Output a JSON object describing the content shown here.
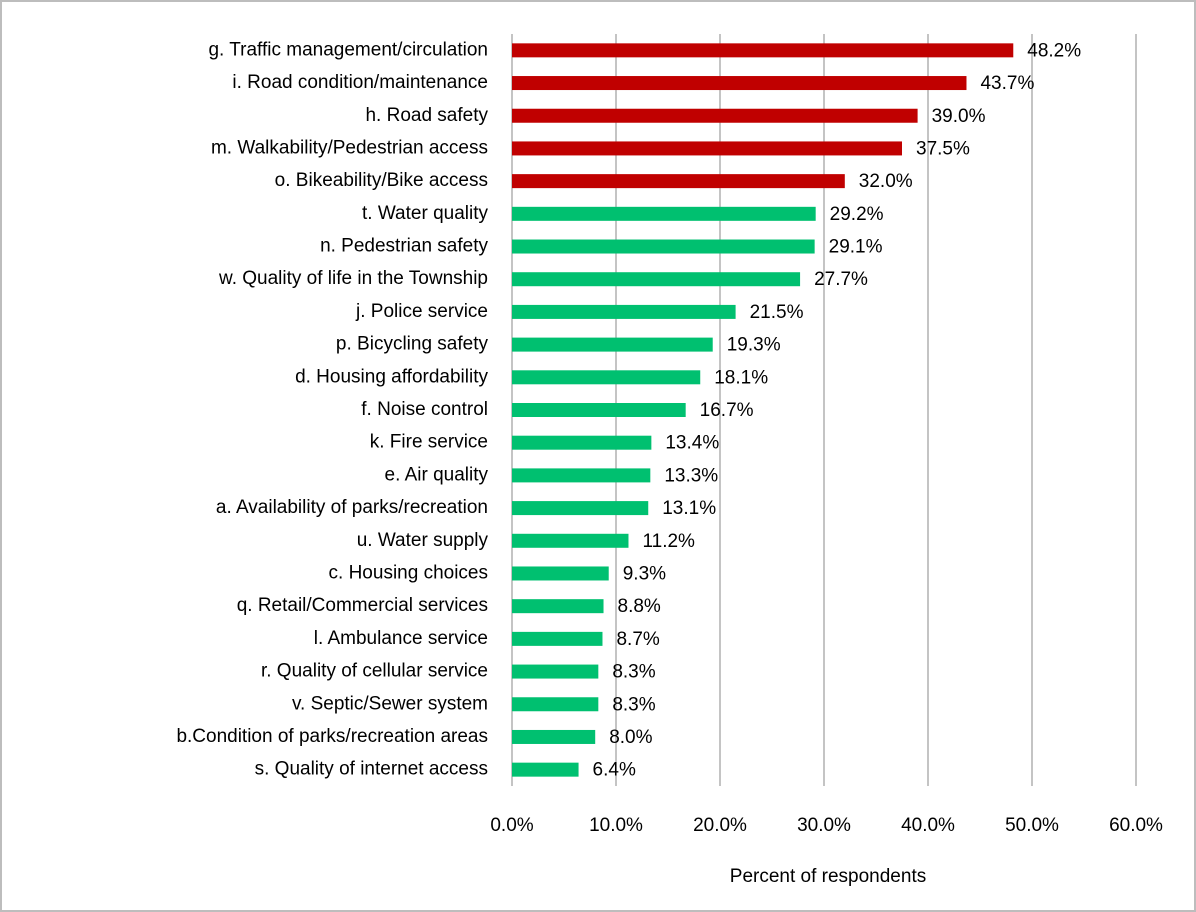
{
  "chart_data": {
    "type": "barh",
    "x_label": "Percent of respondents",
    "categories": [
      "g. Traffic management/circulation",
      "i. Road condition/maintenance",
      "h. Road safety",
      "m. Walkability/Pedestrian access",
      "o. Bikeability/Bike access",
      "t. Water quality",
      "n. Pedestrian safety",
      "w. Quality of life in the Township",
      "j. Police service",
      "p. Bicycling safety",
      "d. Housing affordability",
      "f. Noise control",
      "k. Fire service",
      "e. Air quality",
      "a. Availability of parks/recreation",
      "u. Water supply",
      "c. Housing choices",
      "q. Retail/Commercial services",
      "l.  Ambulance service",
      "r. Quality of cellular service",
      "v. Septic/Sewer system",
      "b.Condition of parks/recreation areas",
      "s. Quality of internet access"
    ],
    "values": [
      48.2,
      43.7,
      39.0,
      37.5,
      32.0,
      29.2,
      29.1,
      27.7,
      21.5,
      19.3,
      18.1,
      16.7,
      13.4,
      13.3,
      13.1,
      11.2,
      9.3,
      8.8,
      8.7,
      8.3,
      8.3,
      8.0,
      6.4
    ],
    "value_labels": [
      "48.2%",
      "43.7%",
      "39.0%",
      "37.5%",
      "32.0%",
      "29.2%",
      "29.1%",
      "27.7%",
      "21.5%",
      "19.3%",
      "18.1%",
      "16.7%",
      "13.4%",
      "13.3%",
      "13.1%",
      "11.2%",
      "9.3%",
      "8.8%",
      "8.7%",
      "8.3%",
      "8.3%",
      "8.0%",
      "6.4%"
    ],
    "colors": [
      "#c00000",
      "#c00000",
      "#c00000",
      "#c00000",
      "#c00000",
      "#00c070",
      "#00c070",
      "#00c070",
      "#00c070",
      "#00c070",
      "#00c070",
      "#00c070",
      "#00c070",
      "#00c070",
      "#00c070",
      "#00c070",
      "#00c070",
      "#00c070",
      "#00c070",
      "#00c070",
      "#00c070",
      "#00c070",
      "#00c070"
    ],
    "xlim": [
      0,
      60
    ],
    "xticks": [
      {
        "value": 0,
        "label": "0.0%"
      },
      {
        "value": 10,
        "label": "10.0%"
      },
      {
        "value": 20,
        "label": "20.0%"
      },
      {
        "value": 30,
        "label": "30.0%"
      },
      {
        "value": 40,
        "label": "40.0%"
      },
      {
        "value": 50,
        "label": "50.0%"
      },
      {
        "value": 60,
        "label": "60.0%"
      }
    ],
    "grid": true
  }
}
